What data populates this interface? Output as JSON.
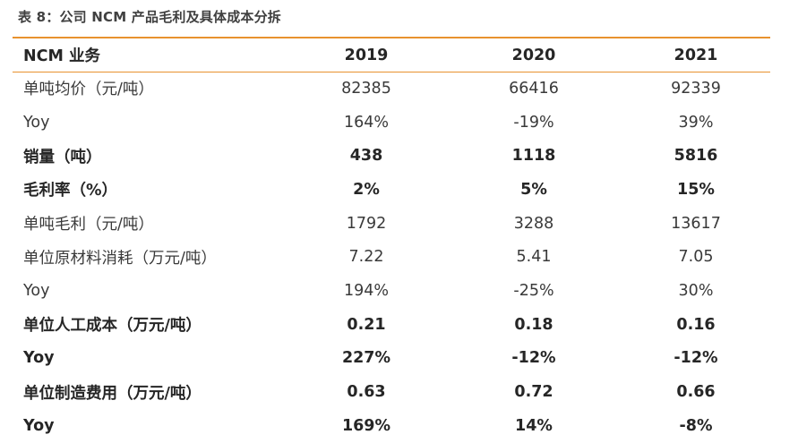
{
  "caption": "表 8：公司 NCM 产品毛利及具体成本分拆",
  "columns": [
    "NCM 业务",
    "2019",
    "2020",
    "2021"
  ],
  "rows": [
    {
      "label": "单吨均价（元/吨）",
      "bold": false,
      "values": [
        "82385",
        "66416",
        "92339"
      ]
    },
    {
      "label": "Yoy",
      "bold": false,
      "values": [
        "164%",
        "-19%",
        "39%"
      ]
    },
    {
      "label": "销量（吨）",
      "bold": true,
      "values": [
        "438",
        "1118",
        "5816"
      ]
    },
    {
      "label": "毛利率（%）",
      "bold": true,
      "values": [
        "2%",
        "5%",
        "15%"
      ]
    },
    {
      "label": "单吨毛利（元/吨）",
      "bold": false,
      "values": [
        "1792",
        "3288",
        "13617"
      ]
    },
    {
      "label": "单位原材料消耗（万元/吨）",
      "bold": false,
      "values": [
        "7.22",
        "5.41",
        "7.05"
      ]
    },
    {
      "label": "Yoy",
      "bold": false,
      "values": [
        "194%",
        "-25%",
        "30%"
      ]
    },
    {
      "label": "单位人工成本（万元/吨）",
      "bold": true,
      "values": [
        "0.21",
        "0.18",
        "0.16"
      ]
    },
    {
      "label": "Yoy",
      "bold": true,
      "values": [
        "227%",
        "-12%",
        "-12%"
      ]
    },
    {
      "label": "单位制造费用（万元/吨）",
      "bold": true,
      "values": [
        "0.63",
        "0.72",
        "0.66"
      ]
    },
    {
      "label": "Yoy",
      "bold": true,
      "values": [
        "169%",
        "14%",
        "-8%"
      ]
    }
  ],
  "colors": {
    "rule": "#e8922e",
    "text": "#333333"
  }
}
